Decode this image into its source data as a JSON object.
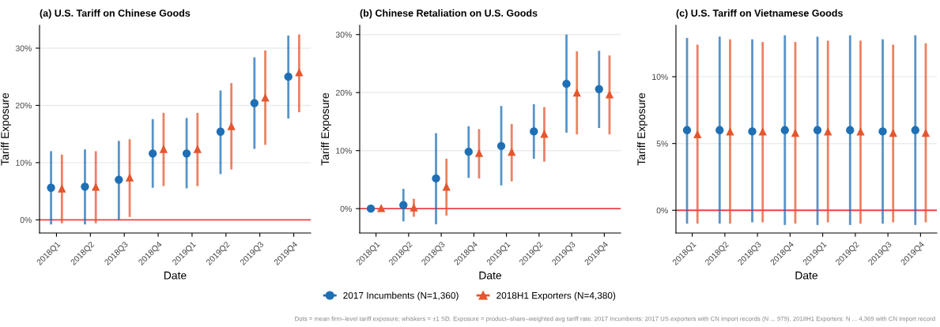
{
  "chart_data": [
    {
      "type": "scatter",
      "title": "(a) U.S. Tariff on Chinese Goods",
      "xlabel": "Date",
      "ylabel": "Tariff Exposure",
      "categories": [
        "2018Q1",
        "2018Q2",
        "2018Q3",
        "2018Q4",
        "2019Q1",
        "2019Q2",
        "2019Q3",
        "2019Q4"
      ],
      "ylim": [
        -2.3,
        34
      ],
      "yticks": [
        {
          "value": 0,
          "label": "0%"
        },
        {
          "value": 10,
          "label": "10%"
        },
        {
          "value": 20,
          "label": "20%"
        },
        {
          "value": 30,
          "label": "30%"
        }
      ],
      "grid": "y",
      "legend": false,
      "ref_lines": [
        {
          "axis": "y",
          "value": 0,
          "label": null,
          "color": "#e8434a"
        }
      ],
      "series": [
        {
          "color": "#1f6fb4",
          "marker": "circle",
          "values": [
            5.6,
            5.8,
            7.0,
            11.6,
            11.6,
            15.4,
            20.4,
            25.0
          ],
          "errors": [
            [
              -0.8,
              12.0
            ],
            [
              -0.8,
              12.3
            ],
            [
              0,
              13.8
            ],
            [
              5.6,
              17.6
            ],
            [
              5.5,
              17.8
            ],
            [
              8.0,
              22.6
            ],
            [
              12.4,
              28.4
            ],
            [
              17.7,
              32.2
            ]
          ]
        },
        {
          "color": "#e4572e",
          "marker": "triangle",
          "values": [
            5.5,
            5.8,
            7.4,
            12.4,
            12.4,
            16.4,
            21.4,
            25.8
          ],
          "errors": [
            [
              -0.6,
              11.4
            ],
            [
              -0.6,
              12.0
            ],
            [
              0.5,
              14.1
            ],
            [
              5.9,
              18.7
            ],
            [
              5.9,
              18.7
            ],
            [
              8.8,
              23.9
            ],
            [
              13.1,
              29.6
            ],
            [
              18.8,
              32.4
            ]
          ]
        }
      ]
    },
    {
      "type": "scatter",
      "title": "(b) Chinese Retaliation on U.S. Goods",
      "xlabel": "Date",
      "ylabel": "Tariff Exposure",
      "categories": [
        "2018Q1",
        "2018Q2",
        "2018Q3",
        "2018Q4",
        "2019Q1",
        "2019Q2",
        "2019Q3",
        "2019Q4"
      ],
      "ylim": [
        -4.2,
        31.6
      ],
      "yticks": [
        {
          "value": 0,
          "label": "0%"
        },
        {
          "value": 10,
          "label": "10%"
        },
        {
          "value": 20,
          "label": "20%"
        },
        {
          "value": 30,
          "label": "30%"
        }
      ],
      "grid": "y",
      "legend": "bottom",
      "ref_lines": [
        {
          "axis": "y",
          "value": 0,
          "label": null,
          "color": "#e8434a"
        }
      ],
      "annotations": [
        "Dots = mean firm–level tariff exposure; whiskers = ±1 SD. Exposure = product–share–weighted avg tariff rate. 2017 Incumbents: 2017 US exporters with CN import records (N ... 979). 2018H1 Exporters: N ... 4,369 with CN import record"
      ],
      "series": [
        {
          "name": "2017 Incumbents (N=1,360)",
          "color": "#1f6fb4",
          "marker": "circle",
          "values": [
            0,
            0.6,
            5.2,
            9.8,
            10.8,
            13.3,
            21.5,
            20.6
          ],
          "errors": [
            null,
            [
              -2.2,
              3.4
            ],
            [
              -2.7,
              13.0
            ],
            [
              5.3,
              14.2
            ],
            [
              4.0,
              17.7
            ],
            [
              8.6,
              18.0
            ],
            [
              13.1,
              30.0
            ],
            [
              13.9,
              27.2
            ]
          ]
        },
        {
          "name": "2018H1 Exporters (N=4,380)",
          "color": "#e4572e",
          "marker": "triangle",
          "values": [
            0.1,
            0.2,
            3.8,
            9.6,
            9.8,
            12.9,
            20.0,
            19.7
          ],
          "errors": [
            null,
            [
              -1.4,
              1.7
            ],
            [
              -1.2,
              8.6
            ],
            [
              5.2,
              13.7
            ],
            [
              4.7,
              14.6
            ],
            [
              8.1,
              17.5
            ],
            [
              12.8,
              27.1
            ],
            [
              12.8,
              26.4
            ]
          ]
        }
      ]
    },
    {
      "type": "scatter",
      "title": "(c) U.S. Tariff on Vietnamese Goods",
      "xlabel": "Date",
      "ylabel": "Tariff Exposure",
      "categories": [
        "2018Q1",
        "2018Q2",
        "2018Q3",
        "2018Q4",
        "2019Q1",
        "2019Q2",
        "2019Q3",
        "2019Q4"
      ],
      "ylim": [
        -1.7,
        13.85
      ],
      "yticks": [
        {
          "value": 0,
          "label": "0%"
        },
        {
          "value": 5,
          "label": "5%"
        },
        {
          "value": 10,
          "label": "10%"
        }
      ],
      "grid": "y",
      "legend": false,
      "ref_lines": [
        {
          "axis": "y",
          "value": 0,
          "label": null,
          "color": "#e8434a"
        }
      ],
      "series": [
        {
          "color": "#1f6fb4",
          "marker": "circle",
          "values": [
            6.0,
            6.0,
            5.9,
            6.0,
            6.0,
            6.0,
            5.9,
            6.0
          ],
          "errors": [
            [
              -1.0,
              12.9
            ],
            [
              -1.0,
              13.0
            ],
            [
              -0.9,
              12.8
            ],
            [
              -1.1,
              13.1
            ],
            [
              -1.1,
              13.0
            ],
            [
              -1.1,
              13.1
            ],
            [
              -1.0,
              12.8
            ],
            [
              -1.1,
              13.1
            ]
          ]
        },
        {
          "color": "#e4572e",
          "marker": "triangle",
          "values": [
            5.7,
            5.9,
            5.9,
            5.8,
            5.9,
            5.9,
            5.8,
            5.8
          ],
          "errors": [
            [
              -1.0,
              12.4
            ],
            [
              -1.0,
              12.8
            ],
            [
              -0.9,
              12.6
            ],
            [
              -1.0,
              12.6
            ],
            [
              -0.9,
              12.7
            ],
            [
              -1.0,
              12.7
            ],
            [
              -0.9,
              12.4
            ],
            [
              -0.9,
              12.5
            ]
          ]
        }
      ]
    }
  ]
}
